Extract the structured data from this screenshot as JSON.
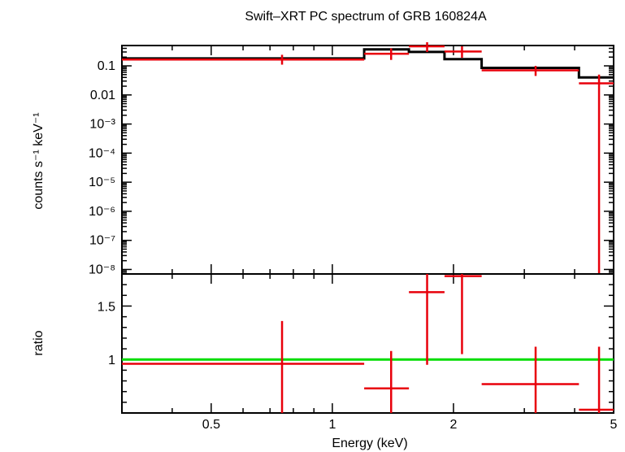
{
  "chart_data": {
    "type": "line",
    "title": "Swift–XRT PC spectrum of GRB 160824A",
    "xlabel": "Energy (keV)",
    "x_scale": "log",
    "xlim": [
      0.3,
      5.0
    ],
    "x_ticks": [
      {
        "value": 0.5,
        "label": "0.5"
      },
      {
        "value": 1,
        "label": "1"
      },
      {
        "value": 2,
        "label": "2"
      },
      {
        "value": 5,
        "label": "5"
      }
    ],
    "top_panel": {
      "ylabel": "counts s⁻¹ keV⁻¹",
      "y_scale": "log",
      "ylim": [
        7e-09,
        0.5
      ],
      "y_ticks": [
        {
          "value": 0.1,
          "label": "0.1"
        },
        {
          "value": 0.01,
          "label": "0.01"
        },
        {
          "value": 0.001,
          "label": "10⁻³"
        },
        {
          "value": 0.0001,
          "label": "10⁻⁴"
        },
        {
          "value": 1e-05,
          "label": "10⁻⁵"
        },
        {
          "value": 1e-06,
          "label": "10⁻⁶"
        },
        {
          "value": 1e-07,
          "label": "10⁻⁷"
        },
        {
          "value": 1e-08,
          "label": "10⁻⁸"
        }
      ],
      "model_color": "#000000",
      "model_steps": [
        {
          "x_lo": 0.3,
          "x_hi": 1.2,
          "y": 0.18
        },
        {
          "x_lo": 1.2,
          "x_hi": 1.55,
          "y": 0.37
        },
        {
          "x_lo": 1.55,
          "x_hi": 1.9,
          "y": 0.3
        },
        {
          "x_lo": 1.9,
          "x_hi": 2.35,
          "y": 0.17
        },
        {
          "x_lo": 2.35,
          "x_hi": 4.1,
          "y": 0.085
        },
        {
          "x_lo": 4.1,
          "x_hi": 5.0,
          "y": 0.04
        }
      ],
      "data_color": "#e8000b",
      "data_points": [
        {
          "x": 0.75,
          "x_lo": 0.3,
          "x_hi": 1.2,
          "y": 0.165,
          "y_lo": 0.11,
          "y_hi": 0.24
        },
        {
          "x": 1.4,
          "x_hi": 1.55,
          "x_lo": 1.2,
          "y": 0.26,
          "y_lo": 0.16,
          "y_hi": 0.4
        },
        {
          "x": 1.72,
          "x_lo": 1.55,
          "x_hi": 1.9,
          "y": 0.47,
          "y_lo": 0.3,
          "y_hi": 0.65
        },
        {
          "x": 2.1,
          "x_lo": 1.9,
          "x_hi": 2.35,
          "y": 0.31,
          "y_lo": 0.19,
          "y_hi": 0.47
        },
        {
          "x": 3.2,
          "x_lo": 2.35,
          "x_hi": 4.1,
          "y": 0.07,
          "y_lo": 0.045,
          "y_hi": 0.1
        },
        {
          "x": 4.6,
          "x_lo": 4.1,
          "x_hi": 5.0,
          "y": 0.025,
          "y_lo": 7e-09,
          "y_hi": 0.05
        }
      ]
    },
    "bottom_panel": {
      "ylabel": "ratio",
      "y_scale": "linear",
      "ylim": [
        0.5,
        1.8
      ],
      "y_ticks": [
        {
          "value": 1,
          "label": "1"
        },
        {
          "value": 1.5,
          "label": "1.5"
        }
      ],
      "reference_line": {
        "y": 1.0,
        "color": "#00dd00"
      },
      "data_color": "#e8000b",
      "data_points": [
        {
          "x": 0.75,
          "x_lo": 0.3,
          "x_hi": 1.2,
          "y": 0.96,
          "y_lo": 0.5,
          "y_hi": 1.36
        },
        {
          "x": 1.4,
          "x_lo": 1.2,
          "x_hi": 1.55,
          "y": 0.73,
          "y_lo": 0.5,
          "y_hi": 1.08
        },
        {
          "x": 1.72,
          "x_lo": 1.55,
          "x_hi": 1.9,
          "y": 1.63,
          "y_lo": 0.95,
          "y_hi": 1.8
        },
        {
          "x": 2.1,
          "x_lo": 1.9,
          "x_hi": 2.35,
          "y": 1.78,
          "y_lo": 1.05,
          "y_hi": 1.8
        },
        {
          "x": 3.2,
          "x_lo": 2.35,
          "x_hi": 4.1,
          "y": 0.77,
          "y_lo": 0.5,
          "y_hi": 1.12
        },
        {
          "x": 4.6,
          "x_lo": 4.1,
          "x_hi": 5.0,
          "y": 0.53,
          "y_lo": 0.5,
          "y_hi": 1.12
        }
      ]
    }
  }
}
